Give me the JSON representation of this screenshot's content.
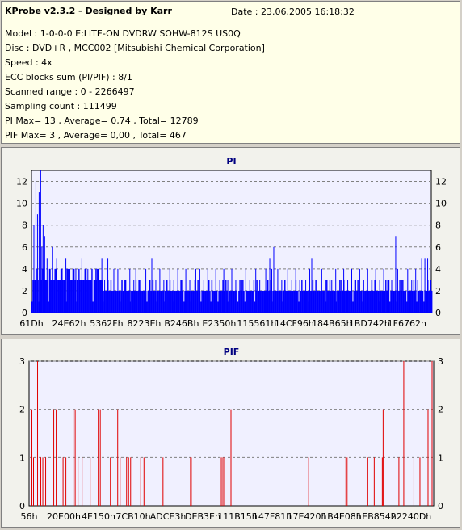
{
  "info": {
    "app_title": "KProbe v2.3.2 - Designed by Karr",
    "date": "Date : 23.06.2005 16:18:32",
    "lines": [
      "Model : 1-0-0-0 E:LITE-ON DVDRW SOHW-812S  US0Q",
      "Disc : DVD+R , MCC002 [Mitsubishi Chemical Corporation]",
      "Speed : 4x",
      "ECC blocks sum (PI/PIF) : 8/1",
      "Scanned range : 0 - 2266497",
      "Sampling count : 111499",
      "PI Max= 13 , Average= 0,74 , Total= 12789",
      "PIF Max= 3 , Average= 0,00 , Total= 467"
    ]
  },
  "colors": {
    "pi_bars": "#0000ff",
    "pif_bars": "#e00000",
    "plot_bg": "#f0f0ff",
    "grid": "#808080",
    "title": "#000080"
  },
  "chart_data": [
    {
      "type": "bar",
      "title": "PI",
      "ylim": [
        0,
        13
      ],
      "y_ticks": [
        0,
        2,
        4,
        6,
        8,
        10,
        12
      ],
      "x_tick_labels": [
        "61Dh",
        "24E62h",
        "5362Fh",
        "8223Eh",
        "B246Bh",
        "E2350h",
        "115561h",
        "14CF96h",
        "184B65h",
        "1BD742h",
        "1F6762h"
      ],
      "grid": true,
      "baseline": 2,
      "baseline_end_fraction": 0.18,
      "spikes": [
        {
          "x": 0.005,
          "v": 8
        },
        {
          "x": 0.01,
          "v": 12
        },
        {
          "x": 0.014,
          "v": 9
        },
        {
          "x": 0.018,
          "v": 11
        },
        {
          "x": 0.022,
          "v": 13
        },
        {
          "x": 0.025,
          "v": 6
        },
        {
          "x": 0.028,
          "v": 8
        },
        {
          "x": 0.032,
          "v": 7
        },
        {
          "x": 0.038,
          "v": 5
        },
        {
          "x": 0.044,
          "v": 4
        },
        {
          "x": 0.052,
          "v": 6
        },
        {
          "x": 0.062,
          "v": 5
        },
        {
          "x": 0.075,
          "v": 4
        },
        {
          "x": 0.085,
          "v": 5
        },
        {
          "x": 0.095,
          "v": 4
        },
        {
          "x": 0.11,
          "v": 4
        },
        {
          "x": 0.125,
          "v": 5
        },
        {
          "x": 0.14,
          "v": 4
        },
        {
          "x": 0.16,
          "v": 4
        },
        {
          "x": 0.175,
          "v": 5
        },
        {
          "x": 0.19,
          "v": 5
        },
        {
          "x": 0.205,
          "v": 4
        },
        {
          "x": 0.215,
          "v": 4
        },
        {
          "x": 0.245,
          "v": 4
        },
        {
          "x": 0.26,
          "v": 4
        },
        {
          "x": 0.285,
          "v": 4
        },
        {
          "x": 0.3,
          "v": 5
        },
        {
          "x": 0.32,
          "v": 4
        },
        {
          "x": 0.345,
          "v": 4
        },
        {
          "x": 0.365,
          "v": 4
        },
        {
          "x": 0.385,
          "v": 4
        },
        {
          "x": 0.41,
          "v": 4
        },
        {
          "x": 0.42,
          "v": 4
        },
        {
          "x": 0.44,
          "v": 4
        },
        {
          "x": 0.46,
          "v": 4
        },
        {
          "x": 0.48,
          "v": 4
        },
        {
          "x": 0.5,
          "v": 4
        },
        {
          "x": 0.535,
          "v": 4
        },
        {
          "x": 0.56,
          "v": 4
        },
        {
          "x": 0.585,
          "v": 4
        },
        {
          "x": 0.595,
          "v": 5
        },
        {
          "x": 0.6,
          "v": 4
        },
        {
          "x": 0.605,
          "v": 6
        },
        {
          "x": 0.615,
          "v": 4
        },
        {
          "x": 0.64,
          "v": 4
        },
        {
          "x": 0.66,
          "v": 4
        },
        {
          "x": 0.695,
          "v": 4
        },
        {
          "x": 0.7,
          "v": 5
        },
        {
          "x": 0.725,
          "v": 4
        },
        {
          "x": 0.76,
          "v": 4
        },
        {
          "x": 0.78,
          "v": 4
        },
        {
          "x": 0.8,
          "v": 4
        },
        {
          "x": 0.82,
          "v": 4
        },
        {
          "x": 0.84,
          "v": 4
        },
        {
          "x": 0.86,
          "v": 4
        },
        {
          "x": 0.88,
          "v": 4
        },
        {
          "x": 0.91,
          "v": 7
        },
        {
          "x": 0.915,
          "v": 4
        },
        {
          "x": 0.94,
          "v": 4
        },
        {
          "x": 0.96,
          "v": 4
        },
        {
          "x": 0.975,
          "v": 5
        },
        {
          "x": 0.983,
          "v": 5
        },
        {
          "x": 0.99,
          "v": 5
        },
        {
          "x": 0.996,
          "v": 4
        }
      ],
      "mid_spikes": [
        0.03,
        0.05,
        0.07,
        0.09,
        0.105,
        0.12,
        0.135,
        0.15,
        0.168,
        0.182,
        0.198,
        0.225,
        0.235,
        0.255,
        0.27,
        0.295,
        0.31,
        0.33,
        0.355,
        0.375,
        0.395,
        0.43,
        0.45,
        0.47,
        0.49,
        0.51,
        0.525,
        0.545,
        0.57,
        0.59,
        0.625,
        0.65,
        0.67,
        0.685,
        0.71,
        0.735,
        0.75,
        0.77,
        0.79,
        0.81,
        0.83,
        0.85,
        0.87,
        0.89,
        0.9,
        0.925,
        0.95,
        0.965
      ]
    },
    {
      "type": "bar",
      "title": "PIF",
      "ylim": [
        0,
        3
      ],
      "y_ticks": [
        0,
        1,
        2,
        3
      ],
      "x_tick_labels": [
        "56h",
        "20E00h",
        "4E150h",
        "7CB10h",
        "ADCE3h",
        "DEB3Eh",
        "111B15h",
        "147F81h",
        "17E420h",
        "1B4E08h",
        "1EB854h",
        "22240Dh"
      ],
      "grid": true,
      "bars": [
        {
          "x": 0.006,
          "v": 2
        },
        {
          "x": 0.01,
          "v": 1
        },
        {
          "x": 0.016,
          "v": 2
        },
        {
          "x": 0.02,
          "v": 3
        },
        {
          "x": 0.028,
          "v": 1
        },
        {
          "x": 0.033,
          "v": 1
        },
        {
          "x": 0.04,
          "v": 1
        },
        {
          "x": 0.06,
          "v": 2
        },
        {
          "x": 0.066,
          "v": 2
        },
        {
          "x": 0.083,
          "v": 1
        },
        {
          "x": 0.09,
          "v": 1
        },
        {
          "x": 0.108,
          "v": 2
        },
        {
          "x": 0.113,
          "v": 2
        },
        {
          "x": 0.12,
          "v": 1
        },
        {
          "x": 0.13,
          "v": 1
        },
        {
          "x": 0.15,
          "v": 1
        },
        {
          "x": 0.17,
          "v": 2
        },
        {
          "x": 0.175,
          "v": 2
        },
        {
          "x": 0.2,
          "v": 1
        },
        {
          "x": 0.218,
          "v": 2
        },
        {
          "x": 0.224,
          "v": 1
        },
        {
          "x": 0.24,
          "v": 1
        },
        {
          "x": 0.245,
          "v": 1
        },
        {
          "x": 0.25,
          "v": 1
        },
        {
          "x": 0.275,
          "v": 1
        },
        {
          "x": 0.283,
          "v": 1
        },
        {
          "x": 0.33,
          "v": 1
        },
        {
          "x": 0.398,
          "v": 1
        },
        {
          "x": 0.4,
          "v": 1
        },
        {
          "x": 0.472,
          "v": 1
        },
        {
          "x": 0.476,
          "v": 1
        },
        {
          "x": 0.48,
          "v": 1
        },
        {
          "x": 0.498,
          "v": 2
        },
        {
          "x": 0.69,
          "v": 1
        },
        {
          "x": 0.782,
          "v": 1
        },
        {
          "x": 0.785,
          "v": 1
        },
        {
          "x": 0.836,
          "v": 1
        },
        {
          "x": 0.852,
          "v": 1
        },
        {
          "x": 0.872,
          "v": 1
        },
        {
          "x": 0.874,
          "v": 2
        },
        {
          "x": 0.913,
          "v": 1
        },
        {
          "x": 0.925,
          "v": 3
        },
        {
          "x": 0.95,
          "v": 1
        },
        {
          "x": 0.965,
          "v": 1
        },
        {
          "x": 0.985,
          "v": 2
        },
        {
          "x": 0.995,
          "v": 3
        }
      ]
    }
  ]
}
